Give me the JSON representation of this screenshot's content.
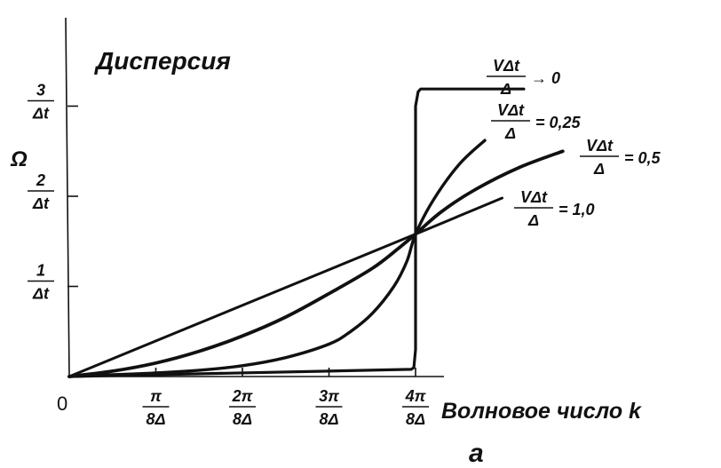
{
  "chart_data": {
    "type": "line",
    "title": "Дисперсия",
    "xlabel": "Волновое число k",
    "ylabel": "Ω",
    "panel_label": "а",
    "origin_label": "0",
    "xlim": [
      0,
      4.9
    ],
    "ylim": [
      0,
      3.9
    ],
    "x_unit_note": "x in units of π/(8Δ)",
    "y_unit_note": "y in units of 1/Δt",
    "x_ticks": [
      {
        "value": 1,
        "num": "π",
        "den": "8Δ"
      },
      {
        "value": 2,
        "num": "2π",
        "den": "8Δ"
      },
      {
        "value": 3,
        "num": "3π",
        "den": "8Δ"
      },
      {
        "value": 4,
        "num": "4π",
        "den": "8Δ"
      }
    ],
    "y_ticks": [
      {
        "value": 1,
        "num": "1",
        "den": "Δt"
      },
      {
        "value": 2,
        "num": "2",
        "den": "Δt"
      },
      {
        "value": 3,
        "num": "3",
        "den": "Δt"
      }
    ],
    "grid": false,
    "series": [
      {
        "name": "VΔt/Δ → 0",
        "label": {
          "num": "VΔt",
          "den": "Δ",
          "suffix": "→ 0"
        },
        "x": [
          0,
          3.95,
          3.98,
          4.0,
          4.0,
          4.03,
          4.06,
          5.25
        ],
        "y": [
          0,
          0.08,
          0.1,
          0.3,
          3.0,
          3.16,
          3.19,
          3.19
        ]
      },
      {
        "name": "VΔt/Δ = 0,25",
        "label": {
          "num": "VΔt",
          "den": "Δ",
          "suffix": "= 0,25"
        },
        "x": [
          0,
          0.5,
          1.0,
          1.5,
          2.0,
          2.5,
          3.0,
          3.25,
          3.5,
          3.75,
          3.9,
          4.0,
          4.2,
          4.5,
          4.8
        ],
        "y": [
          0,
          0.02,
          0.04,
          0.07,
          0.12,
          0.21,
          0.36,
          0.5,
          0.7,
          1.0,
          1.28,
          1.58,
          1.95,
          2.35,
          2.62
        ]
      },
      {
        "name": "VΔt/Δ = 0,5",
        "label": {
          "num": "VΔt",
          "den": "Δ",
          "suffix": "= 0,5"
        },
        "x": [
          0,
          0.5,
          1.0,
          1.5,
          2.0,
          2.5,
          3.0,
          3.5,
          3.8,
          4.0,
          4.3,
          4.7,
          5.2,
          5.7
        ],
        "y": [
          0,
          0.06,
          0.15,
          0.28,
          0.45,
          0.66,
          0.92,
          1.2,
          1.42,
          1.58,
          1.83,
          2.08,
          2.32,
          2.5
        ]
      },
      {
        "name": "VΔt/Δ = 1,0",
        "label": {
          "num": "VΔt",
          "den": "Δ",
          "suffix": "= 1,0"
        },
        "x": [
          0,
          4.0,
          4.5,
          5.0
        ],
        "y": [
          0,
          1.58,
          1.78,
          1.98
        ]
      }
    ]
  }
}
